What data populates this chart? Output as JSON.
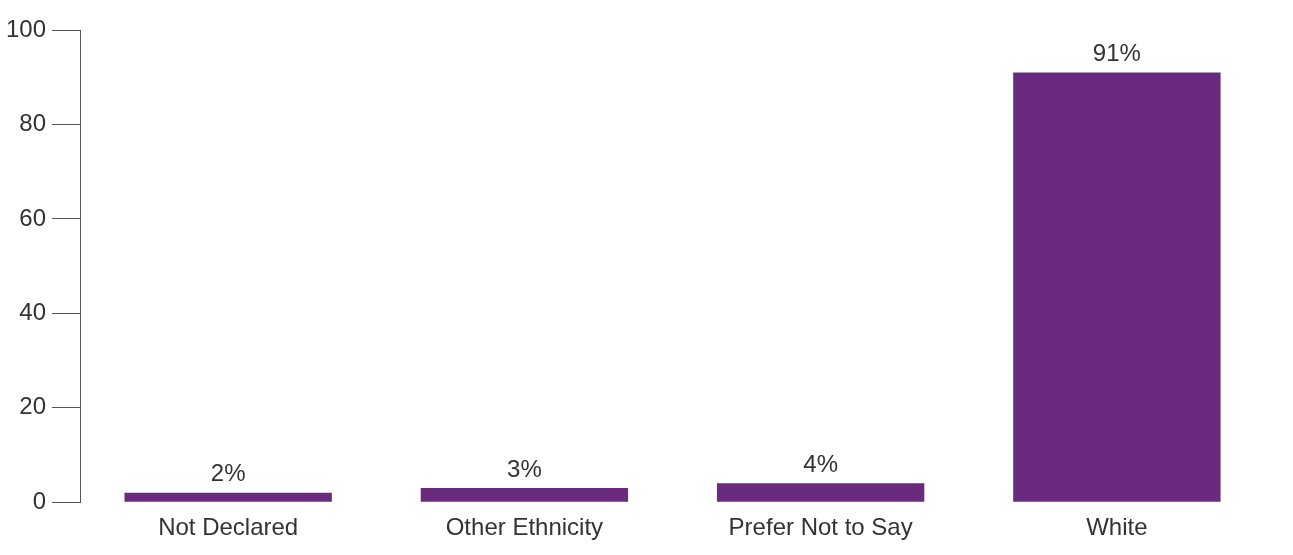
{
  "chart_data": {
    "type": "bar",
    "categories": [
      "Not Declared",
      "Other Ethnicity",
      "Prefer Not to Say",
      "White"
    ],
    "values": [
      2,
      3,
      4,
      91
    ],
    "color": "#6a2a7d",
    "value_labels": [
      "2%",
      "3%",
      "4%",
      "91%"
    ],
    "ylim": [
      0,
      100
    ],
    "yticks": [
      0,
      20,
      40,
      60,
      80,
      100
    ],
    "grid": false,
    "legend": false
  }
}
